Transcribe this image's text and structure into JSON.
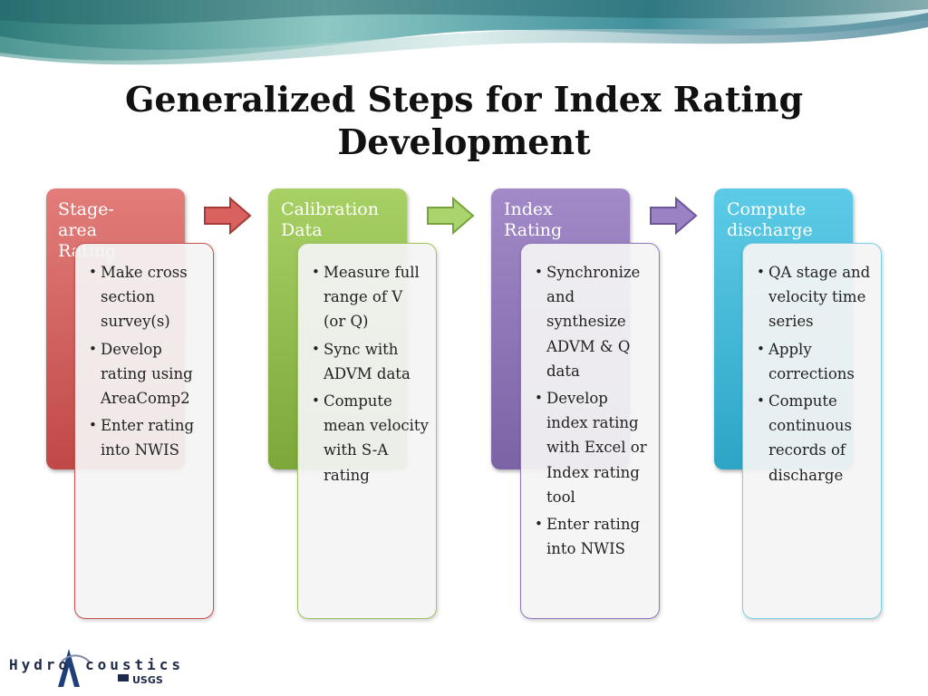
{
  "title": {
    "line1": "Generalized Steps for Index Rating",
    "line2": "Development"
  },
  "colors": {
    "step1": "#c9524e",
    "step2": "#8fbf4e",
    "step3": "#8a72b6",
    "step4": "#3bb4d4"
  },
  "steps": [
    {
      "header_line1": "Stage-area",
      "header_line2": "Rating",
      "items": [
        "Make cross section survey(s)",
        "Develop rating using AreaComp2",
        "Enter rating into NWIS"
      ]
    },
    {
      "header_line1": "Calibration",
      "header_line2": "Data",
      "items": [
        "Measure full range of V (or Q)",
        "Sync with ADVM data",
        "Compute mean velocity with S-A rating"
      ]
    },
    {
      "header_line1": "Index",
      "header_line2": "Rating",
      "items": [
        "Synchronize and synthesize ADVM & Q data",
        "Develop index rating with Excel or Index rating tool",
        "Enter rating into NWIS"
      ]
    },
    {
      "header_line1": "Compute",
      "header_line2": "discharge",
      "items": [
        "QA stage and velocity time series",
        "Apply corrections",
        "Compute continuous records of discharge"
      ]
    }
  ],
  "logo": {
    "left": "Hydro",
    "right": "coustics",
    "sub": "USGS"
  }
}
